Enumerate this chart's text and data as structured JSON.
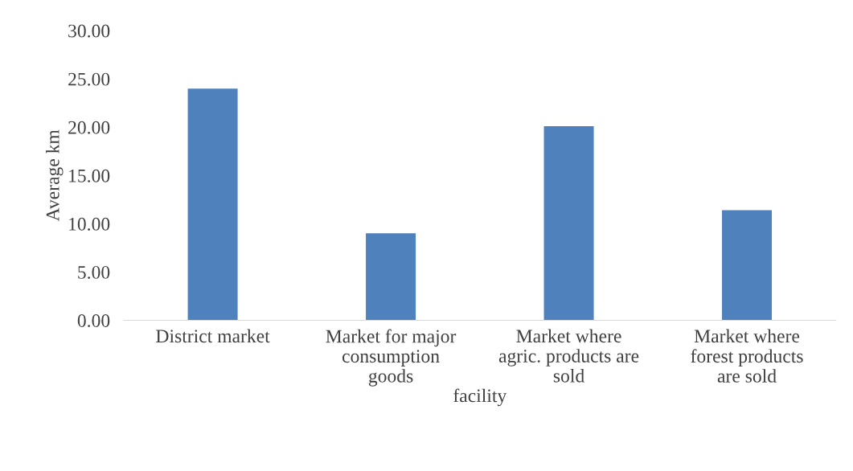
{
  "chart_data": {
    "type": "bar",
    "xlabel": "facility",
    "ylabel": "Average km",
    "categories": [
      "District market",
      "Market for major\nconsumption\ngoods",
      "Market where\nagric. products are\nsold",
      "Market where\nforest products\nare sold"
    ],
    "values": [
      24.0,
      9.0,
      20.1,
      11.4
    ],
    "color": "#4f81bd",
    "ylim": [
      0,
      30
    ],
    "yticks": [
      {
        "value": 0,
        "label": "0.00"
      },
      {
        "value": 5,
        "label": "5.00"
      },
      {
        "value": 10,
        "label": "10.00"
      },
      {
        "value": 15,
        "label": "15.00"
      },
      {
        "value": 20,
        "label": "20.00"
      },
      {
        "value": 25,
        "label": "25.00"
      },
      {
        "value": 30,
        "label": "30.00"
      }
    ],
    "grid": false
  }
}
